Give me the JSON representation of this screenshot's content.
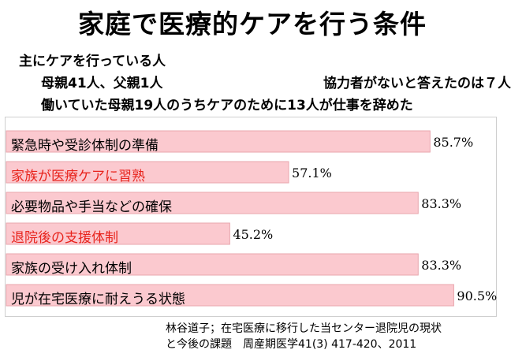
{
  "title": "家庭で医療的ケアを行う条件",
  "intro": {
    "line1": "主にケアを行っている人",
    "line2a": "母親41人、父親1人",
    "line2b": "協力者がないと答えたのは７人",
    "line3": "働いていた母親19人のうちケアのために13人が仕事を辞めた"
  },
  "colors": {
    "bar_fill": "#fbc9cf",
    "bar_stroke": "#e8a6ae",
    "highlight_text": "#e8231c"
  },
  "chart_data": {
    "type": "bar",
    "orientation": "horizontal",
    "categories": [
      "緊急時や受診体制の準備",
      "家族が医療ケアに習熟",
      "必要物品や手当などの確保",
      "退院後の支援体制",
      "家族の受け入れ体制",
      "児が在宅医療に耐えうる状態"
    ],
    "values": [
      85.7,
      57.1,
      83.3,
      45.2,
      83.3,
      90.5
    ],
    "value_labels": [
      "85.7%",
      "57.1%",
      "83.3%",
      "45.2%",
      "83.3%",
      "90.5%"
    ],
    "highlighted": [
      false,
      true,
      false,
      true,
      false,
      false
    ],
    "xlim": [
      0,
      100
    ]
  },
  "citation": {
    "line1": "林谷道子；在宅医療に移行した当センター退院児の現状",
    "line2": "と今後の課題　周産期医学41(3) 417-420、2011"
  }
}
